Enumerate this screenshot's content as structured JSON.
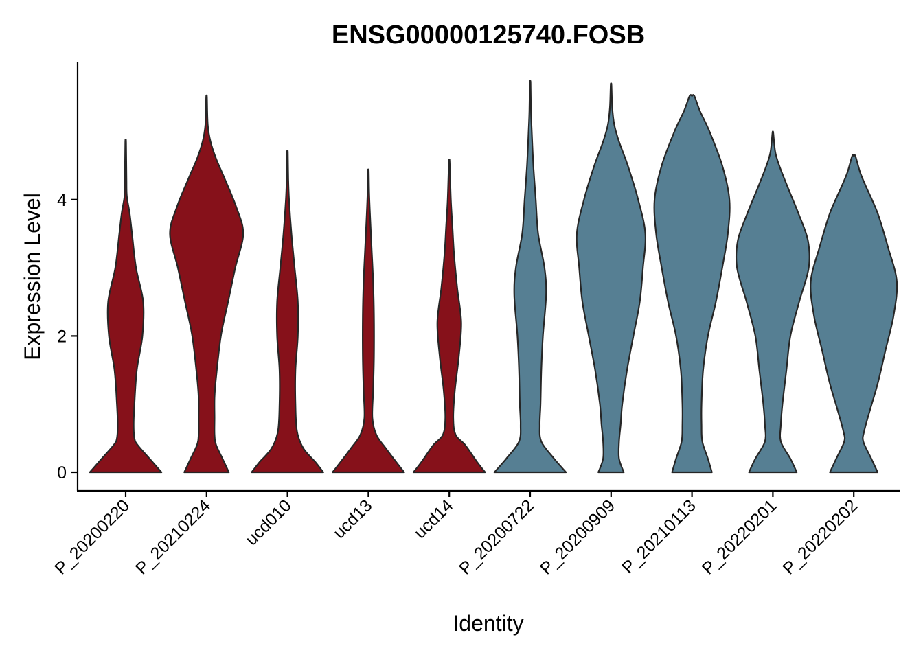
{
  "chart_data": {
    "type": "violin",
    "title": "ENSG00000125740.FOSB",
    "xlabel": "Identity",
    "ylabel": "Expression Level",
    "ylim": [
      -0.28,
      6.0
    ],
    "yticks": [
      0,
      2,
      4
    ],
    "colors": {
      "red": "#86111A",
      "blue": "#567F93"
    },
    "categories": [
      "P_20200220",
      "P_20210224",
      "ucd010",
      "ucd13",
      "ucd14",
      "P_20200722",
      "P_20200909",
      "P_20210113",
      "P_20220201",
      "P_20220202"
    ],
    "groups": [
      "red",
      "red",
      "red",
      "red",
      "red",
      "blue",
      "blue",
      "blue",
      "blue",
      "blue"
    ],
    "violins": [
      {
        "name": "P_20200220",
        "max": 4.84,
        "profile": [
          [
            0,
            0.45
          ],
          [
            0.2,
            0.3
          ],
          [
            0.4,
            0.15
          ],
          [
            0.5,
            0.11
          ],
          [
            0.7,
            0.1
          ],
          [
            1,
            0.11
          ],
          [
            1.5,
            0.14
          ],
          [
            2,
            0.21
          ],
          [
            2.5,
            0.22
          ],
          [
            3,
            0.13
          ],
          [
            3.5,
            0.08
          ],
          [
            3.8,
            0.05
          ],
          [
            4.05,
            0.015
          ],
          [
            4.3,
            0.01
          ],
          [
            4.84,
            0.005
          ]
        ]
      },
      {
        "name": "P_20210224",
        "max": 5.5,
        "profile": [
          [
            0,
            0.28
          ],
          [
            0.2,
            0.2
          ],
          [
            0.4,
            0.12
          ],
          [
            0.55,
            0.1
          ],
          [
            0.8,
            0.1
          ],
          [
            1.1,
            0.1
          ],
          [
            1.4,
            0.12
          ],
          [
            2,
            0.18
          ],
          [
            2.5,
            0.27
          ],
          [
            3.0,
            0.36
          ],
          [
            3.5,
            0.46
          ],
          [
            3.9,
            0.37
          ],
          [
            4.3,
            0.23
          ],
          [
            4.6,
            0.12
          ],
          [
            4.85,
            0.05
          ],
          [
            5.1,
            0.015
          ],
          [
            5.5,
            0.005
          ]
        ]
      },
      {
        "name": "ucd010",
        "max": 4.69,
        "profile": [
          [
            0,
            0.45
          ],
          [
            0.15,
            0.35
          ],
          [
            0.35,
            0.2
          ],
          [
            0.6,
            0.12
          ],
          [
            1.0,
            0.1
          ],
          [
            1.5,
            0.1
          ],
          [
            2,
            0.13
          ],
          [
            2.5,
            0.13
          ],
          [
            3,
            0.09
          ],
          [
            3.5,
            0.05
          ],
          [
            4,
            0.02
          ],
          [
            4.3,
            0.01
          ],
          [
            4.69,
            0.005
          ]
        ]
      },
      {
        "name": "ucd13",
        "max": 4.42,
        "profile": [
          [
            0,
            0.45
          ],
          [
            0.15,
            0.35
          ],
          [
            0.35,
            0.22
          ],
          [
            0.55,
            0.1
          ],
          [
            0.8,
            0.05
          ],
          [
            1.2,
            0.06
          ],
          [
            1.7,
            0.07
          ],
          [
            2.3,
            0.07
          ],
          [
            2.8,
            0.06
          ],
          [
            3.3,
            0.04
          ],
          [
            3.8,
            0.02
          ],
          [
            4.1,
            0.01
          ],
          [
            4.42,
            0.005
          ]
        ]
      },
      {
        "name": "ucd14",
        "max": 4.55,
        "profile": [
          [
            0,
            0.45
          ],
          [
            0.15,
            0.35
          ],
          [
            0.4,
            0.2
          ],
          [
            0.55,
            0.08
          ],
          [
            0.8,
            0.05
          ],
          [
            1.2,
            0.07
          ],
          [
            1.7,
            0.12
          ],
          [
            2.2,
            0.15
          ],
          [
            2.7,
            0.1
          ],
          [
            3.2,
            0.06
          ],
          [
            3.6,
            0.04
          ],
          [
            4,
            0.02
          ],
          [
            4.55,
            0.005
          ]
        ]
      },
      {
        "name": "P_20200722",
        "max": 5.71,
        "profile": [
          [
            0,
            0.45
          ],
          [
            0.2,
            0.3
          ],
          [
            0.45,
            0.14
          ],
          [
            0.7,
            0.12
          ],
          [
            1.0,
            0.13
          ],
          [
            1.5,
            0.14
          ],
          [
            2.0,
            0.16
          ],
          [
            2.6,
            0.2
          ],
          [
            3.0,
            0.18
          ],
          [
            3.5,
            0.1
          ],
          [
            4.0,
            0.07
          ],
          [
            4.5,
            0.04
          ],
          [
            5.0,
            0.02
          ],
          [
            5.3,
            0.01
          ],
          [
            5.71,
            0.005
          ]
        ]
      },
      {
        "name": "P_20200909",
        "max": 5.68,
        "profile": [
          [
            0,
            0.16
          ],
          [
            0.2,
            0.1
          ],
          [
            0.45,
            0.1
          ],
          [
            0.7,
            0.12
          ],
          [
            1.0,
            0.14
          ],
          [
            1.5,
            0.2
          ],
          [
            2,
            0.28
          ],
          [
            2.5,
            0.36
          ],
          [
            3,
            0.4
          ],
          [
            3.5,
            0.43
          ],
          [
            4,
            0.34
          ],
          [
            4.5,
            0.21
          ],
          [
            4.85,
            0.1
          ],
          [
            5.1,
            0.04
          ],
          [
            5.35,
            0.015
          ],
          [
            5.68,
            0.005
          ]
        ]
      },
      {
        "name": "P_20210113",
        "max": 5.52,
        "profile": [
          [
            0,
            0.25
          ],
          [
            0.2,
            0.2
          ],
          [
            0.45,
            0.13
          ],
          [
            0.7,
            0.12
          ],
          [
            1.0,
            0.12
          ],
          [
            1.5,
            0.14
          ],
          [
            2,
            0.2
          ],
          [
            2.5,
            0.3
          ],
          [
            3,
            0.38
          ],
          [
            3.5,
            0.45
          ],
          [
            4,
            0.47
          ],
          [
            4.5,
            0.38
          ],
          [
            5.0,
            0.22
          ],
          [
            5.3,
            0.1
          ],
          [
            5.52,
            0.03
          ]
        ]
      },
      {
        "name": "P_20220201",
        "max": 4.98,
        "profile": [
          [
            0,
            0.3
          ],
          [
            0.2,
            0.22
          ],
          [
            0.45,
            0.1
          ],
          [
            0.7,
            0.1
          ],
          [
            1.0,
            0.12
          ],
          [
            1.5,
            0.17
          ],
          [
            2,
            0.22
          ],
          [
            2.5,
            0.33
          ],
          [
            3,
            0.45
          ],
          [
            3.4,
            0.44
          ],
          [
            3.8,
            0.32
          ],
          [
            4.2,
            0.18
          ],
          [
            4.5,
            0.08
          ],
          [
            4.7,
            0.03
          ],
          [
            4.98,
            0.005
          ]
        ]
      },
      {
        "name": "P_20220202",
        "max": 4.64,
        "profile": [
          [
            0,
            0.3
          ],
          [
            0.2,
            0.22
          ],
          [
            0.45,
            0.12
          ],
          [
            0.6,
            0.13
          ],
          [
            0.9,
            0.2
          ],
          [
            1.3,
            0.3
          ],
          [
            1.8,
            0.4
          ],
          [
            2.3,
            0.5
          ],
          [
            2.8,
            0.54
          ],
          [
            3.3,
            0.43
          ],
          [
            3.8,
            0.3
          ],
          [
            4.2,
            0.15
          ],
          [
            4.4,
            0.08
          ],
          [
            4.64,
            0.02
          ]
        ]
      }
    ]
  }
}
